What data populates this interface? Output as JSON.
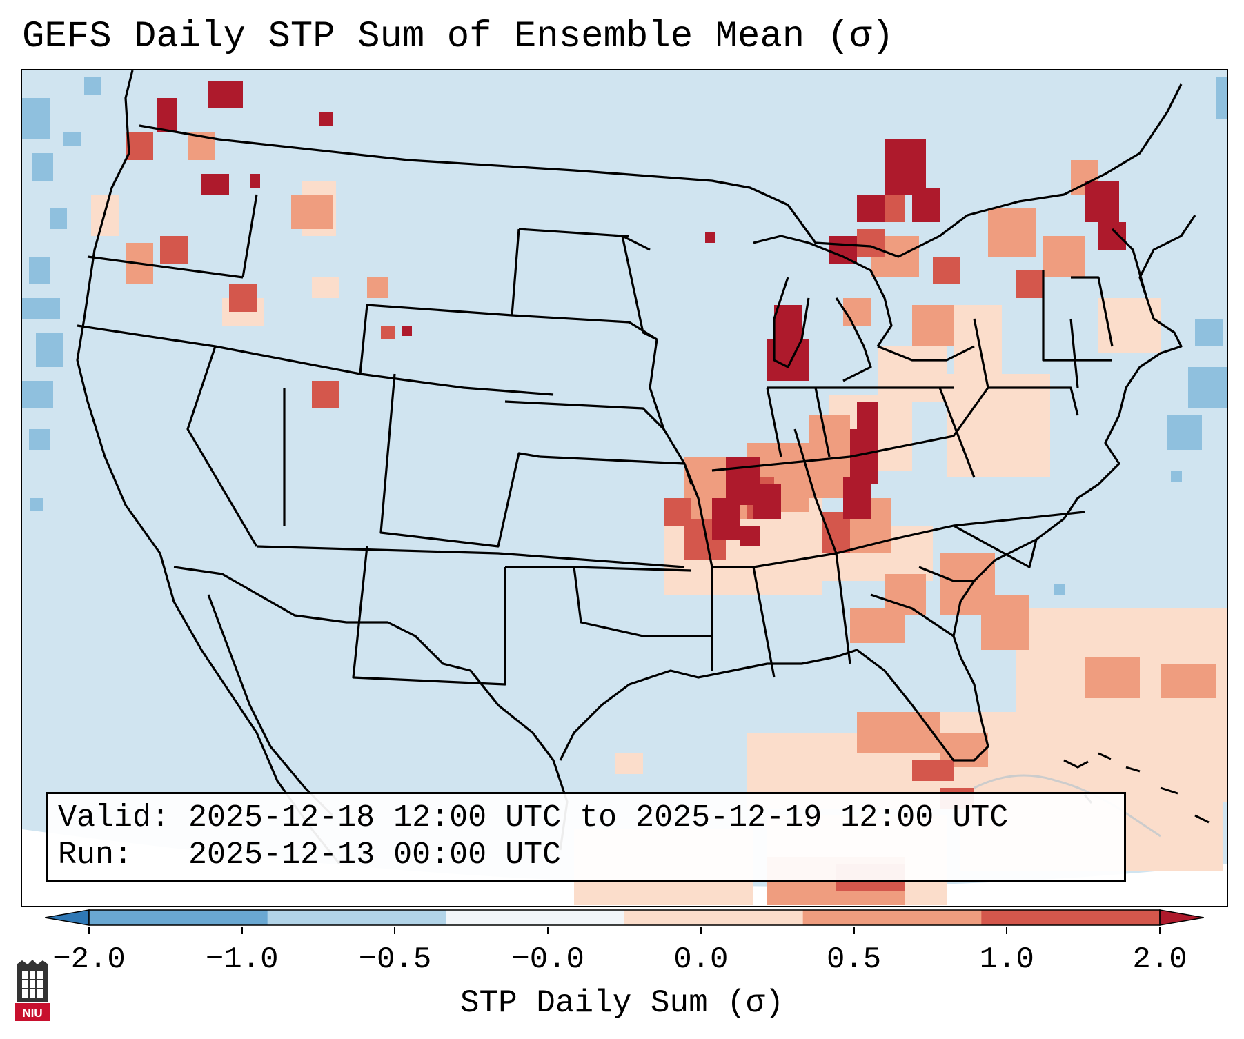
{
  "title": "GEFS Daily STP Sum of Ensemble Mean (σ)",
  "info": {
    "valid_label": "Valid:",
    "valid_value": "2025-12-18 12:00 UTC to 2025-12-19 12:00 UTC",
    "run_label": "Run:",
    "run_value": "2025-12-13 00:00 UTC"
  },
  "colorbar": {
    "label": "STP Daily Sum (σ)",
    "ticks": [
      "−2.0",
      "−1.0",
      "−0.5",
      "−0.0",
      "0.0",
      "0.5",
      "1.0",
      "2.0"
    ],
    "colors": [
      "#2f78b5",
      "#6aa8d2",
      "#b2d4e8",
      "#f2f6f9",
      "#fbddcb",
      "#ef9d7f",
      "#d4574c",
      "#ae1a2c"
    ]
  },
  "logo": {
    "text": "NIU"
  },
  "map_colors": {
    "background_land": "#d0e4f0",
    "ocean_edge": "#ffffff",
    "strong_neg": "#6aa8d2",
    "weak_pos": "#fbddcb",
    "mod_pos": "#ef9d7f",
    "pos": "#d4574c",
    "strong_pos": "#ae1a2c",
    "boundaries": "#000000"
  }
}
